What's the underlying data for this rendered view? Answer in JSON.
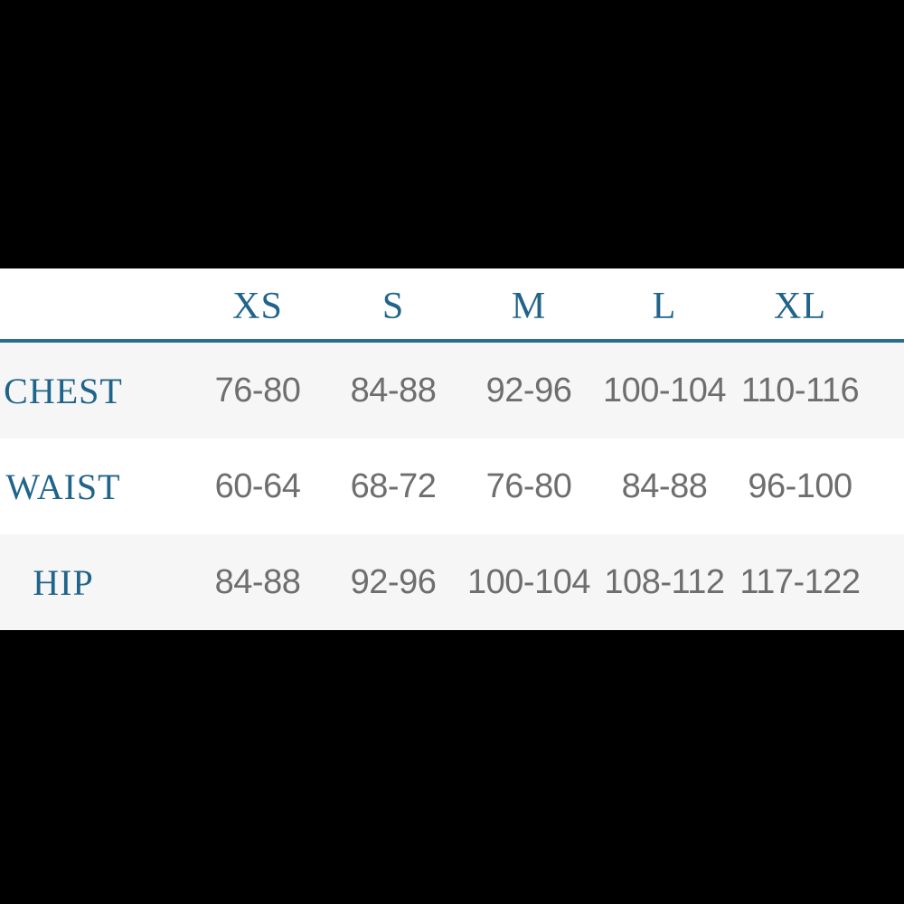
{
  "chart_data": {
    "type": "table",
    "title": "",
    "columns": [
      "XS",
      "S",
      "M",
      "L",
      "XL"
    ],
    "rows": [
      {
        "label": "CHEST",
        "values": [
          "76-80",
          "84-88",
          "92-96",
          "100-104",
          "110-116"
        ]
      },
      {
        "label": "WAIST",
        "values": [
          "60-64",
          "68-72",
          "76-80",
          "84-88",
          "96-100"
        ]
      },
      {
        "label": "HIP",
        "values": [
          "84-88",
          "92-96",
          "100-104",
          "108-112",
          "117-122"
        ]
      }
    ],
    "layout": {
      "header_divider": "horizontal teal rule under column headers",
      "row_striping": "rows 1 and 3 light gray, row 2 white",
      "letterbox": "solid black bars above and below table"
    }
  },
  "colors": {
    "accent_teal": "#20648a",
    "divider": "#2b6d91",
    "divider_glow": "#cde9f6",
    "value_text": "#6e6e6e",
    "alt_row_bg": "#f6f6f7",
    "table_bg": "#ffffff",
    "letterbox": "#000000"
  }
}
